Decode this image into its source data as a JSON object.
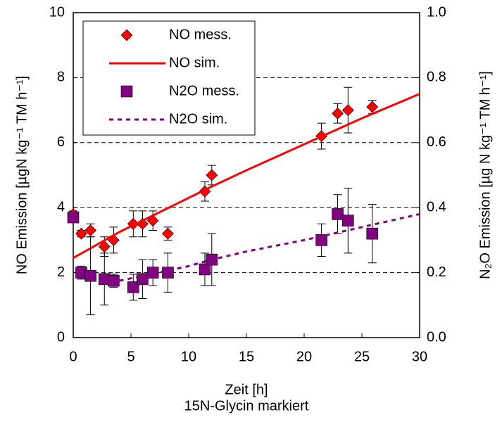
{
  "chart_data": {
    "type": "scatter",
    "x_label": "Zeit [h]",
    "annotation": "15N-Glycin markiert",
    "y_label": "NO Emission [µgN kg⁻¹ TM h⁻¹]",
    "y2_label": "N₂O Emission [µg N kg⁻¹ TM h⁻¹]",
    "xlim": [
      0,
      30
    ],
    "xticks": [
      0,
      5,
      10,
      15,
      20,
      25,
      30
    ],
    "ylim": [
      0,
      10
    ],
    "yticks": [
      0,
      2,
      4,
      6,
      8,
      10
    ],
    "y2lim": [
      0,
      1
    ],
    "y2ticks": [
      {
        "value": 0,
        "label": "0.0"
      },
      0.2,
      0.4,
      0.6,
      0.8,
      {
        "value": 1,
        "label": "1.0"
      }
    ],
    "grid": true,
    "legend": "top-left",
    "series": [
      {
        "name": "NO mess.",
        "color": "#ff0000",
        "style": "markers",
        "marker": "diamond",
        "x": [
          0,
          0.7,
          1.5,
          2.7,
          3.5,
          5.2,
          6,
          6.9,
          8.2,
          11.4,
          12,
          21.5,
          22.9,
          23.8,
          25.9
        ],
        "values": [
          3.8,
          3.2,
          3.3,
          2.8,
          3,
          3.5,
          3.5,
          3.6,
          3.2,
          4.5,
          5,
          6.2,
          6.9,
          7,
          7.1
        ],
        "errors": [
          0.1,
          0.1,
          0.2,
          0.3,
          0.4,
          0.4,
          0.4,
          0.3,
          0.2,
          0.3,
          0.3,
          0.4,
          0.3,
          0.7,
          0.2
        ]
      },
      {
        "name": "NO sim.",
        "color": "#ff0000",
        "style": "line",
        "x": [
          0,
          2,
          4,
          6,
          8,
          10,
          12,
          15,
          20,
          25,
          30
        ],
        "values": [
          2.45,
          2.85,
          3.25,
          3.6,
          3.95,
          4.3,
          4.65,
          5.15,
          5.95,
          6.75,
          7.5
        ]
      },
      {
        "name": "N2O mess.",
        "color": "#800080",
        "style": "markers",
        "marker": "square",
        "axis": "y2",
        "x": [
          0,
          0.7,
          1.5,
          2.7,
          3.5,
          5.2,
          6,
          6.9,
          8.2,
          11.4,
          12,
          21.5,
          22.9,
          23.8,
          25.9
        ],
        "values": [
          0.37,
          0.2,
          0.19,
          0.18,
          0.175,
          0.155,
          0.18,
          0.2,
          0.2,
          0.21,
          0.24,
          0.3,
          0.38,
          0.36,
          0.32
        ],
        "errors": [
          0.01,
          0.02,
          0.12,
          0.08,
          0.02,
          0.04,
          0.06,
          0.04,
          0.06,
          0.05,
          0.08,
          0.05,
          0.06,
          0.1,
          0.09
        ]
      },
      {
        "name": "N2O sim.",
        "color": "#800080",
        "style": "line",
        "dash": true,
        "axis": "y2",
        "x": [
          4,
          6,
          8,
          10,
          12,
          15,
          20,
          25,
          30
        ],
        "values": [
          0.175,
          0.19,
          0.205,
          0.22,
          0.24,
          0.265,
          0.3,
          0.34,
          0.38
        ]
      }
    ]
  }
}
